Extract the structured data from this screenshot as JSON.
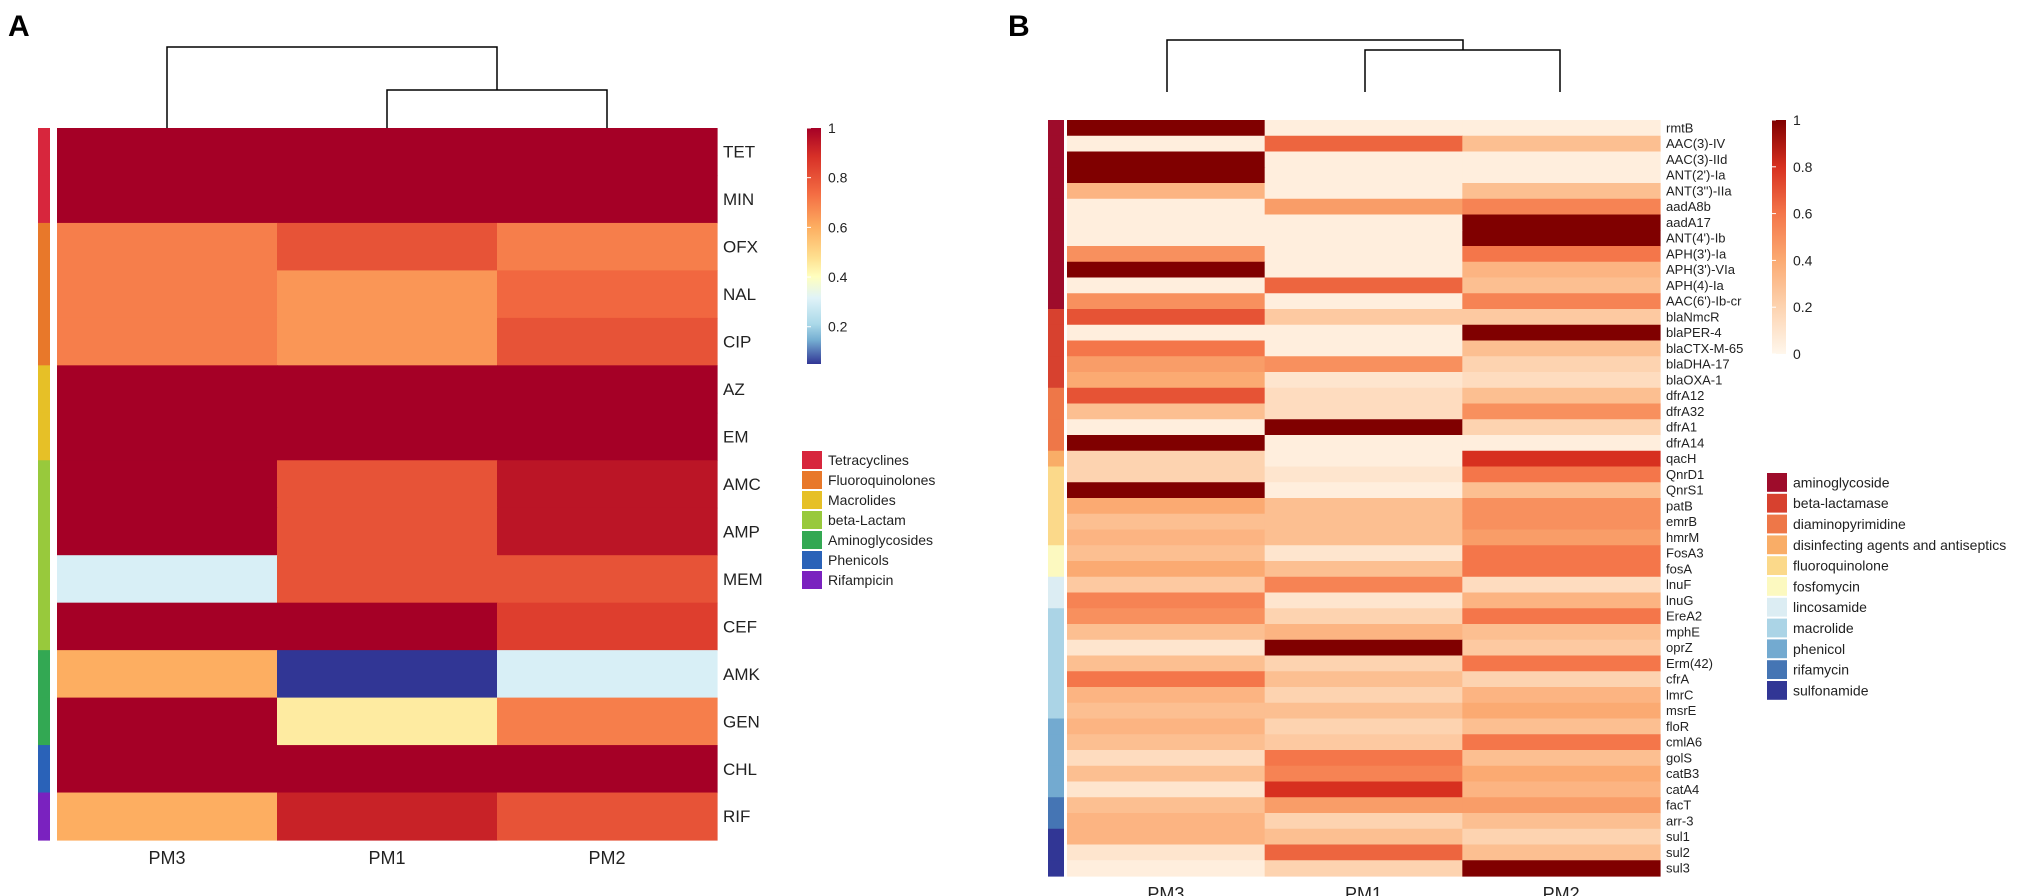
{
  "chart_data": [
    {
      "panel": "A",
      "type": "heatmap",
      "columns": [
        "PM3",
        "PM1",
        "PM2"
      ],
      "rows": [
        "TET",
        "MIN",
        "OFX",
        "NAL",
        "CIP",
        "AZ",
        "EM",
        "AMC",
        "AMP",
        "MEM",
        "CEF",
        "AMK",
        "GEN",
        "CHL",
        "RIF"
      ],
      "row_groups": [
        "Tetracyclines",
        "Tetracyclines",
        "Fluoroquinolones",
        "Fluoroquinolones",
        "Fluoroquinolones",
        "Macrolides",
        "Macrolides",
        "beta-Lactam",
        "beta-Lactam",
        "beta-Lactam",
        "beta-Lactam",
        "Aminoglycosides",
        "Aminoglycosides",
        "Phenicols",
        "Rifampicin"
      ],
      "values": [
        [
          1,
          1,
          1
        ],
        [
          1,
          1,
          1
        ],
        [
          0.7,
          0.8,
          0.7
        ],
        [
          0.7,
          0.65,
          0.75
        ],
        [
          0.7,
          0.65,
          0.8
        ],
        [
          1,
          1,
          1
        ],
        [
          1,
          1,
          1
        ],
        [
          1,
          0.8,
          0.95
        ],
        [
          1,
          0.8,
          0.95
        ],
        [
          0.3,
          0.8,
          0.8
        ],
        [
          1,
          1,
          0.85
        ],
        [
          0.6,
          0.05,
          0.3
        ],
        [
          1,
          0.45,
          0.7
        ],
        [
          1,
          1,
          1
        ],
        [
          0.6,
          0.92,
          0.8
        ]
      ],
      "legend": {
        "ticks": [
          "1",
          "0.8",
          "0.6",
          "0.4",
          "0.2"
        ],
        "range": [
          0.05,
          1
        ],
        "groups": [
          {
            "name": "Tetracyclines",
            "color": "#d7263d"
          },
          {
            "name": "Fluoroquinolones",
            "color": "#e8782a"
          },
          {
            "name": "Macrolides",
            "color": "#e6c027"
          },
          {
            "name": "beta-Lactam",
            "color": "#98c93c"
          },
          {
            "name": "Aminoglycosides",
            "color": "#33a853"
          },
          {
            "name": "Phenicols",
            "color": "#2a62b8"
          },
          {
            "name": "Rifampicin",
            "color": "#7a22bf"
          }
        ]
      }
    },
    {
      "panel": "B",
      "type": "heatmap",
      "columns": [
        "PM3",
        "PM1",
        "PM2"
      ],
      "rows": [
        "rmtB",
        "AAC(3)-IV",
        "AAC(3)-IId",
        "ANT(2')-Ia",
        "ANT(3'')-IIa",
        "aadA8b",
        "aadA17",
        "ANT(4')-Ib",
        "APH(3')-Ia",
        "APH(3')-VIa",
        "APH(4)-Ia",
        "AAC(6')-Ib-cr",
        "blaNmcR",
        "blaPER-4",
        "blaCTX-M-65",
        "blaDHA-17",
        "blaOXA-1",
        "dfrA12",
        "dfrA32",
        "dfrA1",
        "dfrA14",
        "qacH",
        "QnrD1",
        "QnrS1",
        "patB",
        "emrB",
        "hmrM",
        "FosA3",
        "fosA",
        "lnuF",
        "lnuG",
        "EreA2",
        "mphE",
        "oprZ",
        "Erm(42)",
        "cfrA",
        "lmrC",
        "msrE",
        "floR",
        "cmlA6",
        "golS",
        "catB3",
        "catA4",
        "facT",
        "arr-3",
        "sul1",
        "sul2",
        "sul3"
      ],
      "row_groups": [
        "aminoglycoside",
        "aminoglycoside",
        "aminoglycoside",
        "aminoglycoside",
        "aminoglycoside",
        "aminoglycoside",
        "aminoglycoside",
        "aminoglycoside",
        "aminoglycoside",
        "aminoglycoside",
        "aminoglycoside",
        "aminoglycoside",
        "beta-lactamase",
        "beta-lactamase",
        "beta-lactamase",
        "beta-lactamase",
        "beta-lactamase",
        "diaminopyrimidine",
        "diaminopyrimidine",
        "diaminopyrimidine",
        "diaminopyrimidine",
        "disinfecting agents and antiseptics",
        "fluoroquinolone",
        "fluoroquinolone",
        "fluoroquinolone",
        "fluoroquinolone",
        "fluoroquinolone",
        "fosfomycin",
        "fosfomycin",
        "lincosamide",
        "lincosamide",
        "macrolide",
        "macrolide",
        "macrolide",
        "macrolide",
        "macrolide",
        "macrolide",
        "macrolide",
        "phenicol",
        "phenicol",
        "phenicol",
        "phenicol",
        "phenicol",
        "rifamycin",
        "rifamycin",
        "sulfonamide",
        "sulfonamide",
        "sulfonamide"
      ],
      "values": [
        [
          1,
          0.05,
          0.05
        ],
        [
          0.05,
          0.65,
          0.3
        ],
        [
          1,
          0.05,
          0.05
        ],
        [
          1,
          0.05,
          0.05
        ],
        [
          0.35,
          0.05,
          0.3
        ],
        [
          0.05,
          0.45,
          0.55
        ],
        [
          0.05,
          0.05,
          1
        ],
        [
          0.05,
          0.05,
          1
        ],
        [
          0.5,
          0.05,
          0.6
        ],
        [
          1,
          0.05,
          0.35
        ],
        [
          0.05,
          0.65,
          0.3
        ],
        [
          0.5,
          0.05,
          0.55
        ],
        [
          0.7,
          0.25,
          0.25
        ],
        [
          0.05,
          0.05,
          1
        ],
        [
          0.6,
          0.05,
          0.3
        ],
        [
          0.45,
          0.5,
          0.2
        ],
        [
          0.4,
          0.1,
          0.15
        ],
        [
          0.7,
          0.15,
          0.3
        ],
        [
          0.3,
          0.15,
          0.5
        ],
        [
          0.05,
          1,
          0.2
        ],
        [
          1,
          0.05,
          0.05
        ],
        [
          0.2,
          0.05,
          0.8
        ],
        [
          0.2,
          0.1,
          0.6
        ],
        [
          1,
          0.05,
          0.3
        ],
        [
          0.4,
          0.3,
          0.5
        ],
        [
          0.3,
          0.3,
          0.5
        ],
        [
          0.35,
          0.3,
          0.45
        ],
        [
          0.3,
          0.1,
          0.6
        ],
        [
          0.4,
          0.3,
          0.6
        ],
        [
          0.25,
          0.55,
          0.15
        ],
        [
          0.55,
          0.1,
          0.35
        ],
        [
          0.5,
          0.2,
          0.6
        ],
        [
          0.3,
          0.35,
          0.3
        ],
        [
          0.1,
          1,
          0.25
        ],
        [
          0.3,
          0.2,
          0.6
        ],
        [
          0.6,
          0.3,
          0.2
        ],
        [
          0.35,
          0.2,
          0.35
        ],
        [
          0.3,
          0.3,
          0.4
        ],
        [
          0.35,
          0.2,
          0.3
        ],
        [
          0.3,
          0.25,
          0.6
        ],
        [
          0.15,
          0.6,
          0.3
        ],
        [
          0.3,
          0.55,
          0.4
        ],
        [
          0.1,
          0.8,
          0.35
        ],
        [
          0.3,
          0.45,
          0.45
        ],
        [
          0.35,
          0.2,
          0.3
        ],
        [
          0.35,
          0.3,
          0.2
        ],
        [
          0.1,
          0.65,
          0.3
        ],
        [
          0.05,
          0.2,
          1
        ]
      ],
      "legend": {
        "ticks": [
          "1",
          "0.8",
          "0.6",
          "0.4",
          "0.2",
          "0"
        ],
        "range": [
          0,
          1
        ],
        "groups": [
          {
            "name": "aminoglycoside",
            "color": "#9e0c2b"
          },
          {
            "name": "beta-lactamase",
            "color": "#d7412f"
          },
          {
            "name": "diaminopyrimidine",
            "color": "#ee7748"
          },
          {
            "name": "disinfecting agents and antiseptics",
            "color": "#f9ad67"
          },
          {
            "name": "fluoroquinolone",
            "color": "#fbd98a"
          },
          {
            "name": "fosfomycin",
            "color": "#fcf9c0"
          },
          {
            "name": "lincosamide",
            "color": "#dcedf3"
          },
          {
            "name": "macrolide",
            "color": "#abd4e6"
          },
          {
            "name": "phenicol",
            "color": "#73aad0"
          },
          {
            "name": "rifamycin",
            "color": "#4575b4"
          },
          {
            "name": "sulfonamide",
            "color": "#313695"
          }
        ]
      }
    }
  ]
}
